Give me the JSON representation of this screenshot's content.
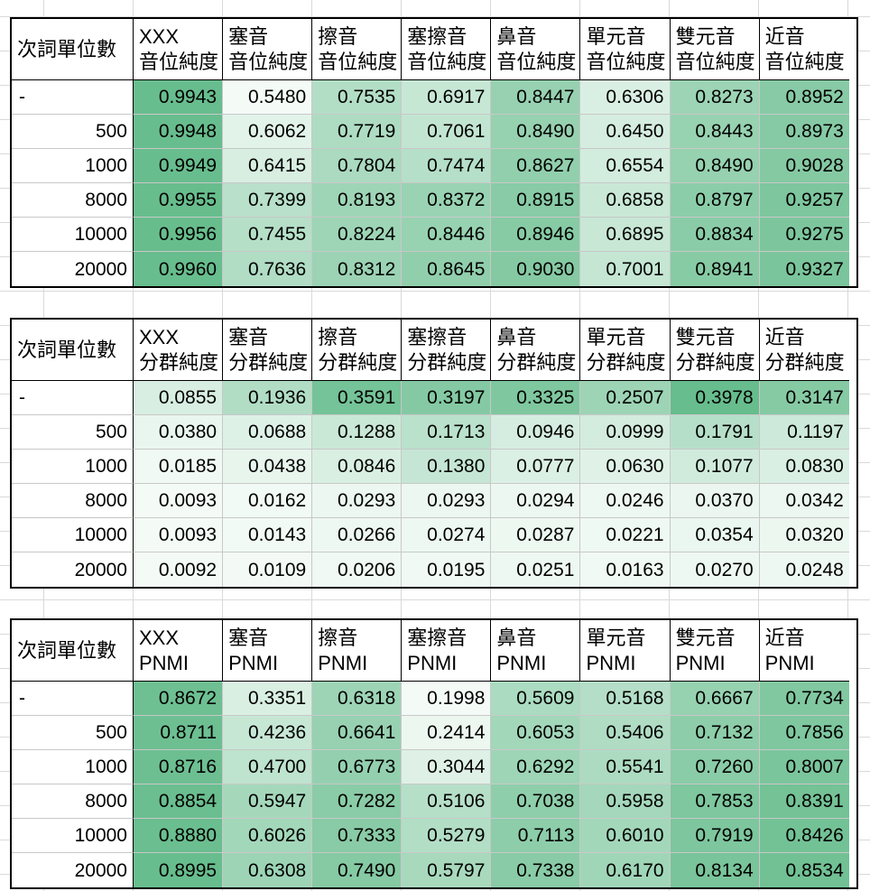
{
  "tables": [
    {
      "corner": "次詞單位數",
      "headers": [
        [
          "XXX",
          "音位純度"
        ],
        [
          "塞音",
          "音位純度"
        ],
        [
          "擦音",
          "音位純度"
        ],
        [
          "塞擦音",
          "音位純度"
        ],
        [
          "鼻音",
          "音位純度"
        ],
        [
          "單元音",
          "音位純度"
        ],
        [
          "雙元音",
          "音位純度"
        ],
        [
          "近音",
          "音位純度"
        ]
      ],
      "row_labels": [
        "-",
        "500",
        "1000",
        "8000",
        "10000",
        "20000"
      ],
      "values": [
        [
          "0.9943",
          "0.5480",
          "0.7535",
          "0.6917",
          "0.8447",
          "0.6306",
          "0.8273",
          "0.8952"
        ],
        [
          "0.9948",
          "0.6062",
          "0.7719",
          "0.7061",
          "0.8490",
          "0.6450",
          "0.8443",
          "0.8973"
        ],
        [
          "0.9949",
          "0.6415",
          "0.7804",
          "0.7474",
          "0.8627",
          "0.6554",
          "0.8490",
          "0.9028"
        ],
        [
          "0.9955",
          "0.7399",
          "0.8193",
          "0.8372",
          "0.8915",
          "0.6858",
          "0.8797",
          "0.9257"
        ],
        [
          "0.9956",
          "0.7455",
          "0.8224",
          "0.8446",
          "0.8946",
          "0.6895",
          "0.8834",
          "0.9275"
        ],
        [
          "0.9960",
          "0.7636",
          "0.8312",
          "0.8645",
          "0.9030",
          "0.7001",
          "0.8941",
          "0.9327"
        ]
      ]
    },
    {
      "corner": "次詞單位數",
      "headers": [
        [
          "XXX",
          "分群純度"
        ],
        [
          "塞音",
          "分群純度"
        ],
        [
          "擦音",
          "分群純度"
        ],
        [
          "塞擦音",
          "分群純度"
        ],
        [
          "鼻音",
          "分群純度"
        ],
        [
          "單元音",
          "分群純度"
        ],
        [
          "雙元音",
          "分群純度"
        ],
        [
          "近音",
          "分群純度"
        ]
      ],
      "row_labels": [
        "-",
        "500",
        "1000",
        "8000",
        "10000",
        "20000"
      ],
      "values": [
        [
          "0.0855",
          "0.1936",
          "0.3591",
          "0.3197",
          "0.3325",
          "0.2507",
          "0.3978",
          "0.3147"
        ],
        [
          "0.0380",
          "0.0688",
          "0.1288",
          "0.1713",
          "0.0946",
          "0.0999",
          "0.1791",
          "0.1197"
        ],
        [
          "0.0185",
          "0.0438",
          "0.0846",
          "0.1380",
          "0.0777",
          "0.0630",
          "0.1077",
          "0.0830"
        ],
        [
          "0.0093",
          "0.0162",
          "0.0293",
          "0.0293",
          "0.0294",
          "0.0246",
          "0.0370",
          "0.0342"
        ],
        [
          "0.0093",
          "0.0143",
          "0.0266",
          "0.0274",
          "0.0287",
          "0.0221",
          "0.0354",
          "0.0320"
        ],
        [
          "0.0092",
          "0.0109",
          "0.0206",
          "0.0195",
          "0.0251",
          "0.0163",
          "0.0270",
          "0.0248"
        ]
      ]
    },
    {
      "corner": "次詞單位數",
      "headers": [
        [
          "XXX",
          "PNMI"
        ],
        [
          "塞音",
          "PNMI"
        ],
        [
          "擦音",
          "PNMI"
        ],
        [
          "塞擦音",
          "PNMI"
        ],
        [
          "鼻音",
          "PNMI"
        ],
        [
          "單元音",
          "PNMI"
        ],
        [
          "雙元音",
          "PNMI"
        ],
        [
          "近音",
          "PNMI"
        ]
      ],
      "row_labels": [
        "-",
        "500",
        "1000",
        "8000",
        "10000",
        "20000"
      ],
      "values": [
        [
          "0.8672",
          "0.3351",
          "0.6318",
          "0.1998",
          "0.5609",
          "0.5168",
          "0.6667",
          "0.7734"
        ],
        [
          "0.8711",
          "0.4236",
          "0.6641",
          "0.2414",
          "0.6053",
          "0.5406",
          "0.7132",
          "0.7856"
        ],
        [
          "0.8716",
          "0.4700",
          "0.6773",
          "0.3044",
          "0.6292",
          "0.5541",
          "0.7260",
          "0.8007"
        ],
        [
          "0.8854",
          "0.5947",
          "0.7282",
          "0.5106",
          "0.7038",
          "0.5958",
          "0.7853",
          "0.8391"
        ],
        [
          "0.8880",
          "0.6026",
          "0.7333",
          "0.5279",
          "0.7113",
          "0.6010",
          "0.7919",
          "0.8426"
        ],
        [
          "0.8995",
          "0.6308",
          "0.7490",
          "0.5797",
          "0.7338",
          "0.6170",
          "0.8134",
          "0.8534"
        ]
      ]
    }
  ],
  "colors": {
    "scale_low": "#f7fcf9",
    "scale_high": "#5bb784"
  }
}
